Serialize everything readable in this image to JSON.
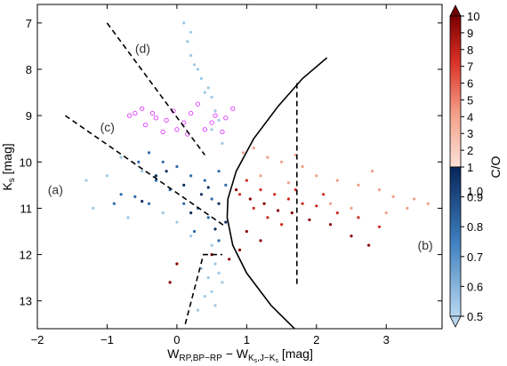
{
  "chart_data": {
    "type": "scatter",
    "xlabel": "W_RP,BP−RP − W_Ks,J−Ks [mag]",
    "xlabel_parts": {
      "main": "W",
      "sub1": "RP,BP−RP",
      "minus": " − W",
      "sub2a": "K",
      "sub2b": "s",
      "sub2c": ",J−K",
      "sub2d": "s",
      "unit": " [mag]"
    },
    "ylabel": "Ks [mag]",
    "ylabel_parts": {
      "main": "K",
      "sub": "s",
      "unit": " [mag]"
    },
    "xlim": [
      -2,
      3.8
    ],
    "ylim": [
      13.6,
      6.6
    ],
    "x_ticks": [
      -2,
      -1,
      0,
      1,
      2,
      3
    ],
    "x_tick_labels": [
      "−2",
      "−1",
      "0",
      "1",
      "2",
      "3"
    ],
    "y_ticks": [
      7,
      8,
      9,
      10,
      11,
      12,
      13
    ],
    "y_tick_labels": [
      "7",
      "8",
      "9",
      "10",
      "11",
      "12",
      "13"
    ],
    "colorbar": {
      "label": "C/O",
      "ticks_upper": [
        "10",
        "9",
        "8",
        "7",
        "6",
        "5",
        "4",
        "3",
        "2",
        "1"
      ],
      "ticks_lower": [
        "1.0",
        "0.9",
        "0.8",
        "0.7",
        "0.6",
        "0.5"
      ],
      "colors": {
        "low": "#9ec8e6",
        "mid_low": "#2b6ba8",
        "one": "#0b2d5e",
        "mid_high": "#f0a08a",
        "high": "#8b0000"
      }
    },
    "annotations": [
      {
        "label": "(a)",
        "x": -1.85,
        "y": 10.6
      },
      {
        "label": "(b)",
        "x": 3.45,
        "y": 11.8
      },
      {
        "label": "(c)",
        "x": -1.1,
        "y": 9.25
      },
      {
        "label": "(d)",
        "x": -0.6,
        "y": 7.55
      }
    ],
    "lines": [
      {
        "name": "line-d",
        "style": "dashed",
        "points": [
          [
            -1.0,
            7.0
          ],
          [
            0.4,
            9.85
          ]
        ]
      },
      {
        "name": "line-c",
        "style": "dashed",
        "points": [
          [
            -1.6,
            9.0
          ],
          [
            0.7,
            11.4
          ]
        ]
      },
      {
        "name": "line-vertical",
        "style": "dashed",
        "points": [
          [
            1.72,
            8.3
          ],
          [
            1.72,
            12.7
          ]
        ]
      },
      {
        "name": "line-lower",
        "style": "dashed",
        "points": [
          [
            0.12,
            13.5
          ],
          [
            0.38,
            12.0
          ],
          [
            0.65,
            12.0
          ]
        ]
      },
      {
        "name": "curve-boundary",
        "style": "solid",
        "points": [
          [
            2.15,
            7.75
          ],
          [
            1.8,
            8.2
          ],
          [
            1.45,
            8.8
          ],
          [
            1.1,
            9.5
          ],
          [
            0.85,
            10.2
          ],
          [
            0.73,
            10.8
          ],
          [
            0.72,
            11.2
          ],
          [
            0.8,
            11.8
          ],
          [
            1.0,
            12.4
          ],
          [
            1.35,
            13.1
          ],
          [
            1.72,
            13.65
          ]
        ]
      }
    ],
    "series": [
      {
        "name": "",
        "color": "#e23bff",
        "points": [
          [
            -0.68,
            9.0
          ],
          [
            -0.5,
            8.85
          ],
          [
            -0.3,
            9.05
          ],
          [
            -0.05,
            8.9
          ],
          [
            0.2,
            8.95
          ],
          [
            0.55,
            9.0
          ],
          [
            0.8,
            8.85
          ],
          [
            -0.2,
            9.35
          ],
          [
            0.4,
            9.3
          ],
          [
            0.1,
            9.15
          ],
          [
            -0.45,
            9.2
          ],
          [
            0.65,
            9.35
          ],
          [
            -0.6,
            8.95
          ],
          [
            0.3,
            8.75
          ],
          [
            -0.15,
            9.1
          ],
          [
            0.5,
            9.15
          ],
          [
            0.0,
            9.3
          ],
          [
            -0.35,
            8.95
          ],
          [
            0.7,
            9.05
          ],
          [
            0.15,
            9.4
          ]
        ]
      },
      {
        "name": "",
        "color": "#9ec8e6",
        "points": [
          [
            0.1,
            7.0
          ],
          [
            0.15,
            7.4
          ],
          [
            0.2,
            7.7
          ],
          [
            0.3,
            8.0
          ],
          [
            0.35,
            8.2
          ],
          [
            0.45,
            8.4
          ],
          [
            0.5,
            8.6
          ],
          [
            0.55,
            8.9
          ],
          [
            0.6,
            9.1
          ],
          [
            0.25,
            7.9
          ],
          [
            0.4,
            8.5
          ],
          [
            0.5,
            9.3
          ],
          [
            0.65,
            9.6
          ],
          [
            0.2,
            7.2
          ],
          [
            0.55,
            12.2
          ],
          [
            0.45,
            12.5
          ],
          [
            0.5,
            12.8
          ],
          [
            0.55,
            13.1
          ],
          [
            0.6,
            12.4
          ],
          [
            0.4,
            12.9
          ],
          [
            0.3,
            13.2
          ],
          [
            0.5,
            11.8
          ],
          [
            0.35,
            12.3
          ],
          [
            0.65,
            12.6
          ],
          [
            -1.2,
            11.0
          ],
          [
            -1.3,
            10.4
          ],
          [
            -1.0,
            10.3
          ],
          [
            -0.8,
            9.9
          ],
          [
            -0.5,
            10.2
          ],
          [
            -0.2,
            11.1
          ],
          [
            0.0,
            11.3
          ],
          [
            0.2,
            11.6
          ],
          [
            -0.7,
            11.2
          ]
        ]
      },
      {
        "name": "",
        "color": "#2b6ba8",
        "points": [
          [
            -0.4,
            9.8
          ],
          [
            -0.2,
            10.0
          ],
          [
            0.0,
            10.1
          ],
          [
            0.2,
            10.3
          ],
          [
            0.4,
            10.4
          ],
          [
            0.6,
            10.2
          ],
          [
            0.5,
            10.8
          ],
          [
            0.3,
            11.0
          ],
          [
            0.1,
            10.9
          ],
          [
            -0.1,
            10.6
          ],
          [
            -0.3,
            10.4
          ],
          [
            -0.55,
            10.0
          ],
          [
            -0.6,
            10.75
          ],
          [
            -0.4,
            10.9
          ],
          [
            -0.8,
            10.7
          ],
          [
            -0.9,
            10.9
          ],
          [
            0.7,
            10.5
          ],
          [
            0.45,
            11.2
          ],
          [
            0.25,
            11.5
          ],
          [
            0.6,
            11.7
          ]
        ]
      },
      {
        "name": "",
        "color": "#0b2d5e",
        "points": [
          [
            -0.15,
            10.2
          ],
          [
            0.1,
            10.5
          ],
          [
            0.35,
            10.7
          ],
          [
            0.6,
            10.9
          ],
          [
            0.7,
            11.3
          ],
          [
            -0.5,
            10.85
          ],
          [
            0.2,
            11.1
          ],
          [
            0.55,
            11.45
          ],
          [
            -0.3,
            10.3
          ],
          [
            0.45,
            10.55
          ]
        ]
      },
      {
        "name": "",
        "color": "#f0a08a",
        "points": [
          [
            1.3,
            9.9
          ],
          [
            1.5,
            10.0
          ],
          [
            1.8,
            10.1
          ],
          [
            2.0,
            10.3
          ],
          [
            2.3,
            10.4
          ],
          [
            2.6,
            10.5
          ],
          [
            2.9,
            10.6
          ],
          [
            3.1,
            10.75
          ],
          [
            3.4,
            10.8
          ],
          [
            3.6,
            10.9
          ],
          [
            1.2,
            10.3
          ],
          [
            1.6,
            10.45
          ],
          [
            2.2,
            10.9
          ],
          [
            2.5,
            11.0
          ],
          [
            3.0,
            11.1
          ],
          [
            3.3,
            11.0
          ],
          [
            0.95,
            9.8
          ],
          [
            1.1,
            9.7
          ],
          [
            1.7,
            9.85
          ],
          [
            2.8,
            10.2
          ]
        ]
      },
      {
        "name": "",
        "color": "#d02a20",
        "points": [
          [
            1.0,
            10.4
          ],
          [
            1.2,
            10.6
          ],
          [
            1.4,
            10.7
          ],
          [
            1.6,
            10.8
          ],
          [
            1.8,
            10.9
          ],
          [
            2.0,
            10.95
          ],
          [
            2.3,
            11.1
          ],
          [
            2.6,
            11.2
          ],
          [
            2.9,
            11.4
          ],
          [
            1.1,
            11.0
          ],
          [
            1.3,
            11.2
          ],
          [
            1.5,
            11.35
          ],
          [
            0.9,
            10.7
          ],
          [
            1.7,
            10.6
          ],
          [
            2.1,
            10.7
          ]
        ]
      },
      {
        "name": "",
        "color": "#8b0000",
        "points": [
          [
            0.85,
            10.6
          ],
          [
            1.05,
            10.8
          ],
          [
            1.25,
            10.9
          ],
          [
            1.45,
            11.05
          ],
          [
            1.65,
            11.1
          ],
          [
            1.9,
            11.25
          ],
          [
            2.2,
            11.35
          ],
          [
            2.5,
            11.6
          ],
          [
            2.75,
            11.8
          ],
          [
            1.0,
            11.5
          ],
          [
            1.2,
            11.7
          ],
          [
            0.9,
            11.9
          ],
          [
            0.75,
            12.1
          ],
          [
            0.5,
            12.0
          ],
          [
            0.0,
            12.2
          ],
          [
            -0.1,
            12.6
          ]
        ]
      }
    ]
  }
}
